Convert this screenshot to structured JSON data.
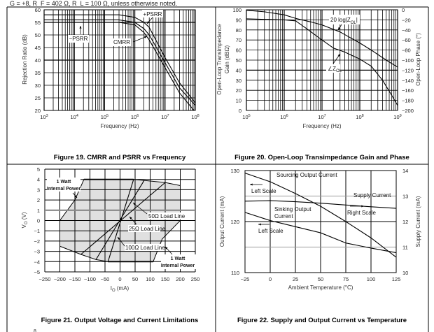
{
  "header_note": "G = +8, R_F = 402 Ω, R_L = 100 Ω, unless otherwise noted.",
  "page_number": "8",
  "chart_data": [
    {
      "id": "fig19",
      "type": "line",
      "title": "Figure 19. CMRR and PSRR vs Frequency",
      "xlabel": "Frequency (Hz)",
      "ylabel": "Rejection Ratio (dB)",
      "xscale": "log",
      "xlim": [
        1000,
        100000000
      ],
      "ylim": [
        20,
        60
      ],
      "xtick_exponents": [
        3,
        4,
        5,
        6,
        7,
        8
      ],
      "yticks": [
        20,
        25,
        30,
        35,
        40,
        45,
        50,
        55,
        60
      ],
      "grid": true,
      "series": [
        {
          "name": "+PSRR",
          "x": [
            1000,
            100000,
            300000,
            1000000,
            2000000,
            3000000,
            10000000,
            30000000,
            100000000
          ],
          "y": [
            58,
            58,
            58,
            57,
            55,
            53,
            41,
            31,
            23
          ]
        },
        {
          "name": "CMRR",
          "x": [
            1000,
            100000,
            300000,
            1000000,
            2000000,
            3000000,
            10000000,
            30000000,
            100000000
          ],
          "y": [
            56,
            56,
            56,
            55,
            52.5,
            50,
            39,
            29,
            22
          ]
        },
        {
          "name": "−PSRR",
          "x": [
            1000,
            100000,
            300000,
            1000000,
            2000000,
            3000000,
            10000000,
            30000000,
            90000000
          ],
          "y": [
            55,
            55,
            55,
            54,
            51,
            48,
            37,
            27,
            20
          ]
        }
      ],
      "annotations": [
        "+PSRR",
        "CMRR",
        "−PSRR"
      ]
    },
    {
      "id": "fig20",
      "type": "line",
      "title": "Figure 20. Open-Loop Transimpedance Gain and Phase",
      "xlabel": "Frequency (Hz)",
      "ylabel": "Open-Loop Transimpedance Gain (dBΩ)",
      "ylabel_lines": [
        "Open-Loop Transimpedance",
        "Gain (dBΩ)"
      ],
      "ylabel_right": "Open-Loop Phase (°)",
      "xscale": "log",
      "xlim": [
        100000,
        1000000000
      ],
      "ylim": [
        0,
        100
      ],
      "ylim_right": [
        -200,
        0
      ],
      "xtick_exponents": [
        5,
        6,
        7,
        8,
        9
      ],
      "yticks": [
        0,
        10,
        20,
        30,
        40,
        50,
        60,
        70,
        80,
        90,
        100
      ],
      "yticks_right": [
        "−200",
        "−180",
        "−160",
        "−140",
        "−120",
        "−100",
        "−80",
        "−60",
        "−40",
        "−20",
        "0"
      ],
      "grid": true,
      "series": [
        {
          "name": "20 log|Z_OL|",
          "axis": "left",
          "x": [
            100000,
            300000,
            1000000,
            2000000,
            5000000,
            10000000,
            30000000,
            100000000,
            200000000,
            500000000,
            1000000000
          ],
          "y": [
            99.5,
            98,
            95,
            91.5,
            88,
            85,
            78,
            67,
            60,
            50,
            43
          ]
        },
        {
          "name": "∠Z_OL",
          "axis": "right",
          "x": [
            100000,
            1000000,
            2000000,
            4000000,
            10000000,
            20000000,
            40000000,
            100000000,
            200000000,
            400000000,
            700000000,
            1000000000
          ],
          "y": [
            -18,
            -20,
            -22,
            -38,
            -60,
            -76,
            -84,
            -98,
            -112,
            -140,
            -170,
            -190
          ]
        }
      ],
      "annotations": [
        "20 log|Z",
        "OL",
        "|",
        "∠Z",
        "OL"
      ]
    },
    {
      "id": "fig21",
      "type": "line",
      "title": "Figure 21. Output Voltage and Current Limitations",
      "xlabel": "I",
      "xlabel_sub": "O",
      "xlabel_unit": " (mA)",
      "ylabel": "V",
      "ylabel_sub": "O",
      "ylabel_unit": " (V)",
      "xlim": [
        -250,
        250
      ],
      "ylim": [
        -5,
        5
      ],
      "xticks": [
        "−250",
        "−200",
        "−150",
        "−100",
        "−50",
        "0",
        "50",
        "100",
        "150",
        "200",
        "250"
      ],
      "yticks": [
        "−5",
        "−4",
        "−3",
        "−2",
        "−1",
        "0",
        "1",
        "2",
        "3",
        "4",
        "5"
      ],
      "grid": true,
      "region": {
        "name": "safe operating area",
        "x": [
          -120,
          45,
          80,
          150,
          200,
          200,
          140,
          110,
          -40,
          -80,
          -130,
          -200,
          -200,
          -150
        ],
        "y": [
          4,
          4,
          3.9,
          3.7,
          3.4,
          0,
          -1.8,
          -4,
          -4,
          -3.8,
          -3.3,
          -2.5,
          0,
          2
        ]
      },
      "series": [
        {
          "name": "100Ω Load Line",
          "x": [
            -40,
            45
          ],
          "y": [
            -4,
            4
          ]
        },
        {
          "name": "50Ω Load Line",
          "x": [
            -80,
            80
          ],
          "y": [
            -3.8,
            3.9
          ]
        },
        {
          "name": "25Ω Load Line",
          "x": [
            -130,
            150
          ],
          "y": [
            -3.3,
            3.7
          ]
        }
      ],
      "annotations": [
        "1 Watt",
        "Internal Power",
        "50Ω  Load Line",
        "25Ω  Load Line",
        "100Ω  Load Line",
        "1 Watt",
        "Internal Power"
      ]
    },
    {
      "id": "fig22",
      "type": "line",
      "title": "Figure 22. Supply and Output Current vs Temperature",
      "xlabel": "Ambient Temperature (°C)",
      "ylabel": "Output Current (mA)",
      "ylabel_right": "Supply Current (mA)",
      "xlim": [
        -25,
        125
      ],
      "ylim": [
        110,
        130
      ],
      "ylim_right": [
        10,
        14
      ],
      "xticks": [
        "−25",
        "0",
        "25",
        "50",
        "75",
        "100",
        "125"
      ],
      "yticks": [
        "110",
        "120",
        "130"
      ],
      "yticks_right": [
        "10",
        "11",
        "12",
        "13",
        "14"
      ],
      "grid": true,
      "series": [
        {
          "name": "Sourcing Output Current",
          "axis": "left",
          "x": [
            -25,
            0,
            25,
            50,
            75,
            100,
            125
          ],
          "y": [
            129.5,
            127.8,
            125.5,
            123,
            120,
            116.8,
            113
          ]
        },
        {
          "name": "Supply Current",
          "axis": "right",
          "x": [
            -25,
            0,
            25,
            50,
            75,
            100,
            125
          ],
          "y": [
            12.8,
            12.82,
            12.78,
            12.72,
            12.65,
            12.58,
            12.52
          ]
        },
        {
          "name": "Sinking Output Current",
          "axis": "left",
          "x": [
            -25,
            0,
            25,
            50,
            75,
            100,
            125
          ],
          "y": [
            121.8,
            120.2,
            119,
            117.8,
            115.8,
            114.8,
            113.9
          ]
        }
      ],
      "annotations": [
        "Sourcing Output Current",
        "Left Scale",
        "Supply Current",
        "Right Scale",
        "Sinking Output",
        "Current",
        "Left Scale"
      ]
    }
  ]
}
